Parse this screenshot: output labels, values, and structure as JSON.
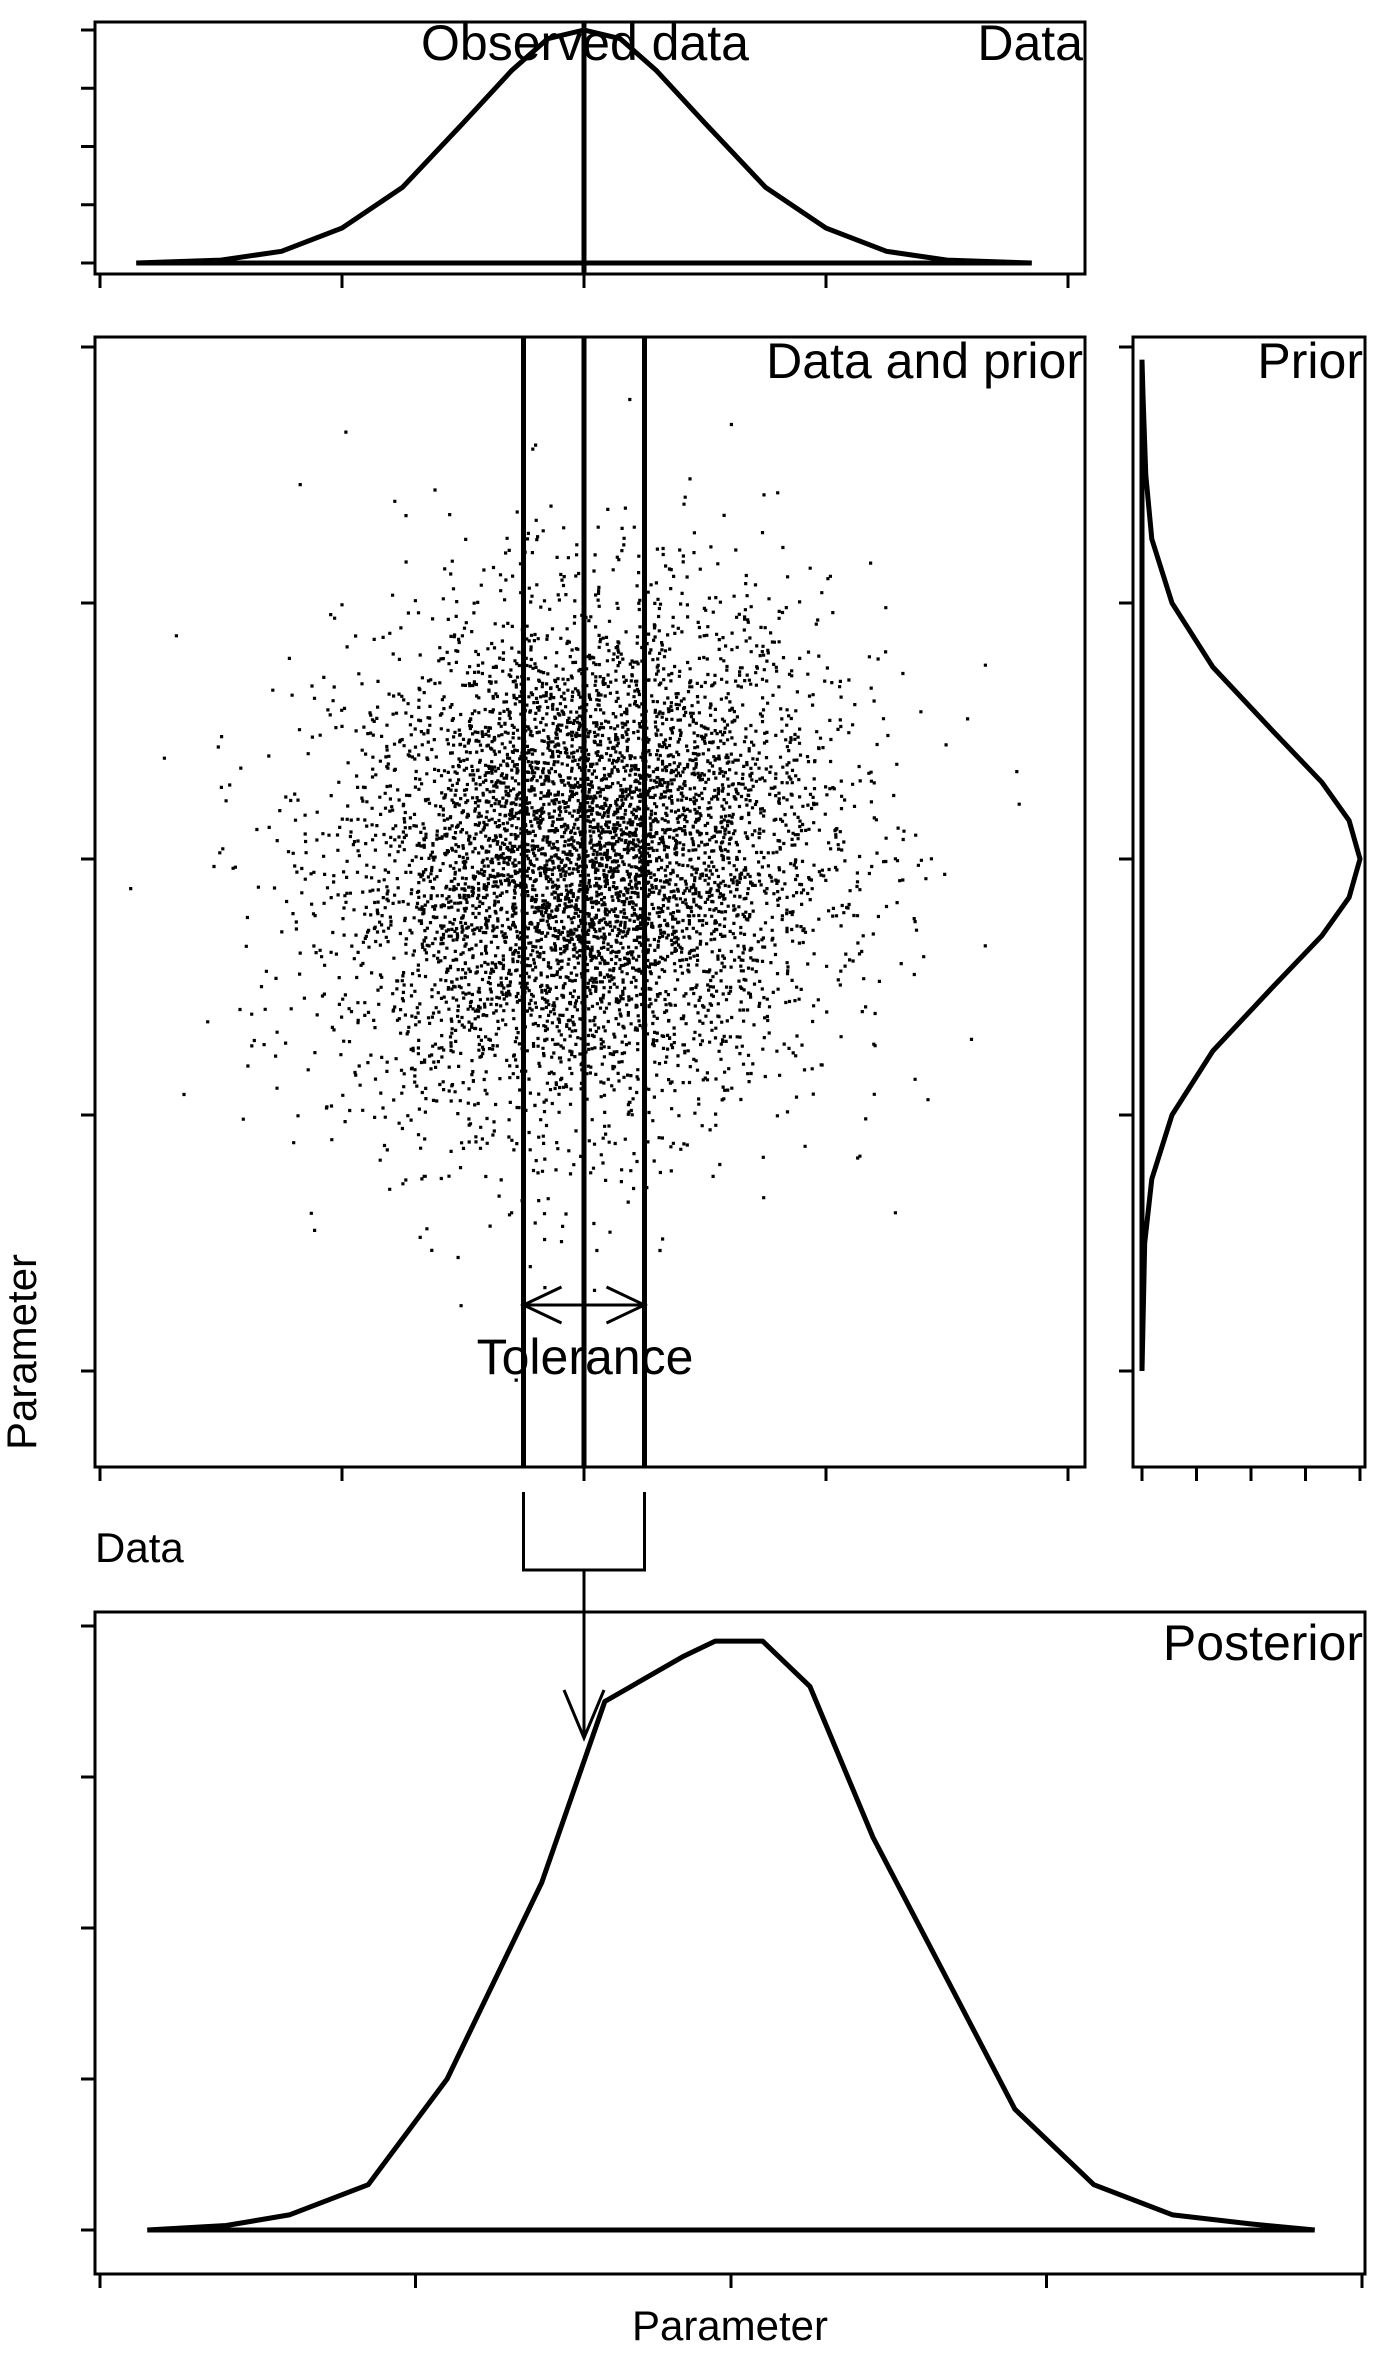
{
  "chart_data": [
    {
      "type": "line",
      "panel": "top",
      "title": "Data",
      "annotation": "Observed data",
      "xlim": [
        -4,
        4
      ],
      "ylim": [
        0,
        0.4
      ],
      "xticks": [
        -4,
        -2,
        0,
        2,
        4
      ],
      "yticks": [
        0,
        0.1,
        0.2,
        0.3,
        0.4
      ],
      "observed_value": 0,
      "x": [
        -3.7,
        -3.0,
        -2.5,
        -2.0,
        -1.5,
        -1.0,
        -0.6,
        -0.3,
        0,
        0.3,
        0.6,
        1.0,
        1.5,
        2.0,
        2.5,
        3.0,
        3.7
      ],
      "y": [
        0.0,
        0.005,
        0.02,
        0.06,
        0.13,
        0.24,
        0.33,
        0.385,
        0.4,
        0.385,
        0.33,
        0.24,
        0.13,
        0.06,
        0.02,
        0.005,
        0.0
      ]
    },
    {
      "type": "scatter",
      "panel": "middle",
      "title": "Data and prior",
      "xlabel": "Data",
      "ylabel": "Parameter",
      "xlim": [
        -4,
        4
      ],
      "ylim": [
        -4.35,
        4.35
      ],
      "xticks": [
        -4,
        -2,
        0,
        2,
        4
      ],
      "yticks": [
        -4,
        -2,
        0,
        2,
        4
      ],
      "n_points": 6000,
      "x_sd": 1.0,
      "y_sd": 1.0,
      "correlation": 0.1,
      "observed_value": 0,
      "tolerance": 0.5,
      "annotation": "Tolerance"
    },
    {
      "type": "line",
      "panel": "right",
      "title": "Prior",
      "ylim": [
        -4.35,
        4.35
      ],
      "xlim": [
        0,
        0.4
      ],
      "yticks": [
        -4,
        -2,
        0,
        2,
        4
      ],
      "xticks": [
        0,
        0.1,
        0.2,
        0.3,
        0.4
      ],
      "y": [
        -4.0,
        -3.0,
        -2.5,
        -2.0,
        -1.5,
        -1.0,
        -0.6,
        -0.3,
        0,
        0.3,
        0.6,
        1.0,
        1.5,
        2.0,
        2.5,
        3.0,
        3.6,
        3.9
      ],
      "x": [
        0.0,
        0.005,
        0.018,
        0.055,
        0.13,
        0.24,
        0.33,
        0.38,
        0.4,
        0.38,
        0.33,
        0.24,
        0.13,
        0.055,
        0.018,
        0.007,
        0.002,
        0.0
      ]
    },
    {
      "type": "line",
      "panel": "bottom",
      "title": "Posterior",
      "xlabel": "Parameter",
      "xlim": [
        -4,
        4
      ],
      "ylim": [
        0,
        0.4
      ],
      "xticks": [
        -4,
        -2,
        0,
        2,
        4
      ],
      "yticks": [
        0,
        0.1,
        0.2,
        0.3,
        0.4
      ],
      "x": [
        -3.7,
        -3.2,
        -2.8,
        -2.3,
        -1.8,
        -1.2,
        -0.8,
        -0.3,
        -0.1,
        0.2,
        0.5,
        0.9,
        1.4,
        1.8,
        2.3,
        2.8,
        3.3,
        3.7
      ],
      "y": [
        0.0,
        0.003,
        0.01,
        0.03,
        0.1,
        0.23,
        0.35,
        0.38,
        0.39,
        0.39,
        0.36,
        0.26,
        0.16,
        0.08,
        0.03,
        0.01,
        0.004,
        0.0
      ]
    }
  ]
}
